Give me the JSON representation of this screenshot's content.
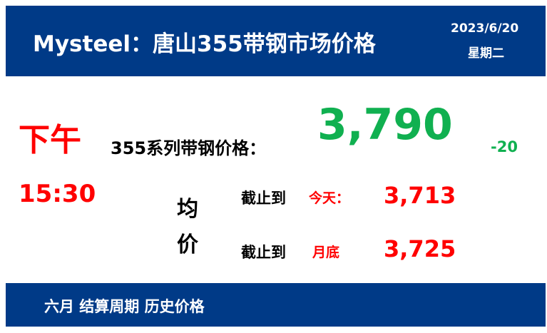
{
  "header": {
    "title": "Mysteel：唐山355带钢市场价格",
    "date": "2023/6/20",
    "weekday": "星期二"
  },
  "session": {
    "period": "下午",
    "time": "15:30"
  },
  "price": {
    "label": "355系列带钢价格：",
    "value": "3,790",
    "change": "-20"
  },
  "average": {
    "label_line1": "均",
    "label_line2": "价",
    "rows": [
      {
        "prefix": "截止到",
        "scope": "今天：",
        "value": "3,713"
      },
      {
        "prefix": "截止到",
        "scope": "月底",
        "value": "3,725"
      }
    ]
  },
  "footer": {
    "title": "六月 结算周期 历史价格"
  },
  "colors": {
    "banner": "#003a87",
    "price": "#10b050",
    "accent": "#ff0000"
  }
}
